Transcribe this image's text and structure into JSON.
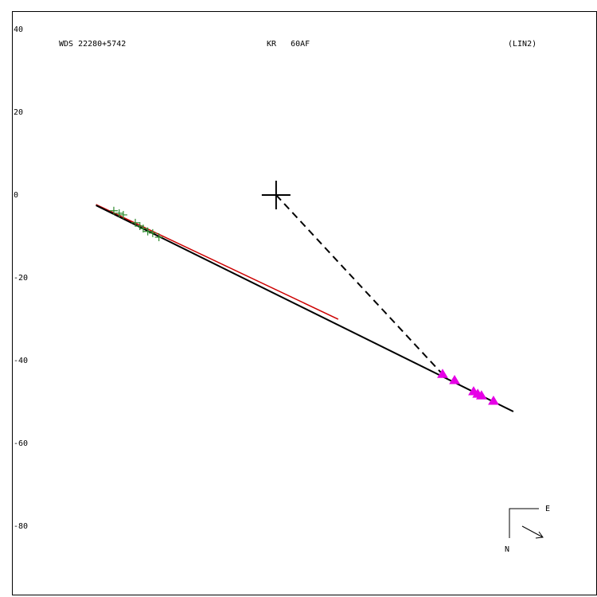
{
  "chart_data": {
    "type": "scatter",
    "labels": [
      "WDS 22280+5742",
      "KR   60AF",
      "(LIN2)"
    ],
    "compass": [
      "E",
      "N"
    ],
    "xlim": [
      -63.8,
      77.5
    ],
    "ylim": [
      -96.7,
      44.4
    ],
    "yticks": [
      -80,
      -60,
      -40,
      -20,
      0,
      20,
      40
    ],
    "series": [
      {
        "marker": "line",
        "color": "#cc0000",
        "x": [
          -43.5,
          15.0
        ],
        "values": [
          -2.3,
          -30.0
        ]
      },
      {
        "marker": "line",
        "color": "#000000",
        "x": [
          -43.5,
          57.3
        ],
        "values": [
          -2.5,
          -52.3
        ]
      },
      {
        "marker": "dashed",
        "color": "#000000",
        "x": [
          0,
          40.2
        ],
        "values": [
          0,
          -43.3
        ]
      },
      {
        "marker": "cross",
        "color": "#000000",
        "x": [
          0
        ],
        "values": [
          0
        ]
      },
      {
        "marker": "plus",
        "color": "#2e8b2e",
        "x": [
          -39.2,
          -37.9,
          -36.9,
          -34.0,
          -32.9,
          -32.1,
          -31.0,
          -29.8,
          -28.3
        ],
        "values": [
          -3.8,
          -4.4,
          -4.8,
          -6.7,
          -7.5,
          -8.1,
          -8.8,
          -9.2,
          -10.2
        ]
      },
      {
        "marker": "triangle",
        "color": "#e600e6",
        "x": [
          40.2,
          43.1,
          47.7,
          48.7,
          49.6,
          52.5
        ],
        "values": [
          -43.3,
          -44.8,
          -47.5,
          -48.1,
          -48.5,
          -49.8
        ]
      }
    ]
  }
}
